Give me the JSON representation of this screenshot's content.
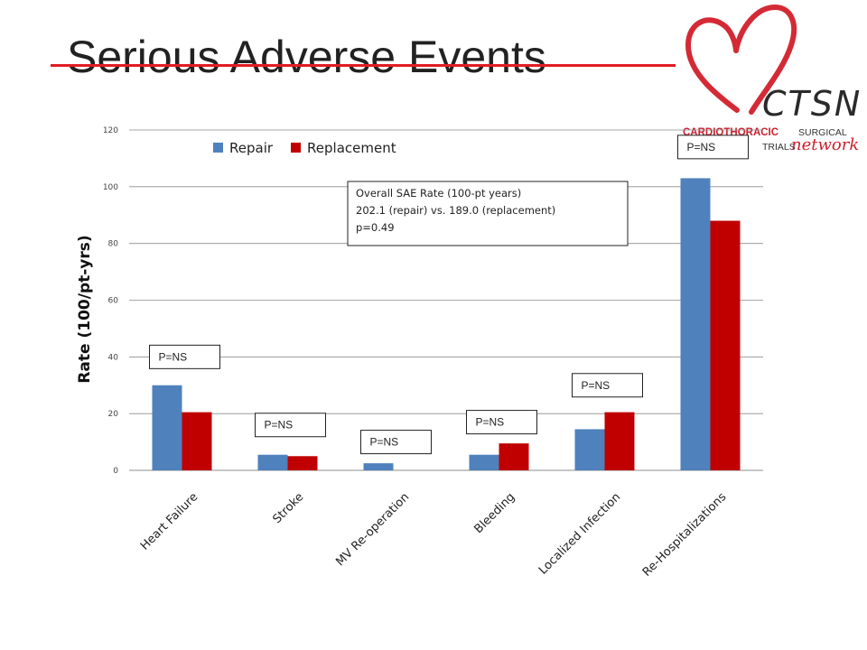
{
  "slide": {
    "title": "Serious Adverse Events",
    "title_rule_color": "#e31b23"
  },
  "logo": {
    "acronym": "CTSN",
    "line1_red": "CARDIOTHORACIC",
    "line1_dark": "SURGICAL",
    "line2_dark": "TRIALS",
    "line2_red": "network",
    "heart_color": "#d42a35"
  },
  "chart_data": {
    "type": "bar",
    "title": "",
    "xlabel": "",
    "ylabel": "Rate (100/pt-yrs)",
    "ylim": [
      0,
      120
    ],
    "yticks": [
      0,
      20,
      40,
      60,
      80,
      100,
      120
    ],
    "grid": true,
    "legend_position": "top-left",
    "categories": [
      "Heart Failure",
      "Stroke",
      "MV Re-operation",
      "Bleeding",
      "Localized Infection",
      "Re-Hospitalizations"
    ],
    "series": [
      {
        "name": "Repair",
        "color": "#4f81bd",
        "values": [
          30,
          5.5,
          2.5,
          5.5,
          14.5,
          103
        ]
      },
      {
        "name": "Replacement",
        "color": "#c00000",
        "values": [
          20.5,
          5,
          0,
          9.5,
          20.5,
          88
        ]
      }
    ],
    "annotations": [
      {
        "text": "P=NS",
        "category": 0,
        "y": 40
      },
      {
        "text": "P=NS",
        "category": 1,
        "y": 16
      },
      {
        "text": "P=NS",
        "category": 2,
        "y": 10
      },
      {
        "text": "P=NS",
        "category": 3,
        "y": 17
      },
      {
        "text": "P=NS",
        "category": 4,
        "y": 30
      },
      {
        "text": "P=NS",
        "category": 5,
        "y": 114
      }
    ],
    "note": {
      "lines": [
        "Overall SAE Rate (100-pt years)",
        "202.1 (repair) vs. 189.0 (replacement)",
        "p=0.49"
      ]
    }
  }
}
